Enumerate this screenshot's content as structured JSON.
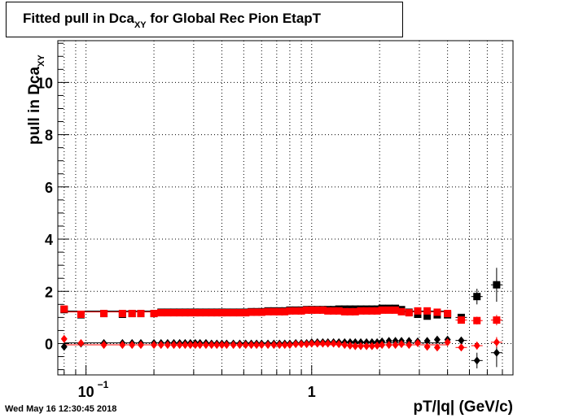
{
  "header": {
    "title": "Fitted pull in Dca",
    "title_sub": "XY",
    "title_rest": " for Global Rec Pion EtapT"
  },
  "footer": {
    "timestamp": "Wed May 16 12:30:45 2018"
  },
  "chart_data": {
    "type": "scatter",
    "title": "Fitted pull in Dca_XY for Global Rec Pion EtapT",
    "xlabel": "pT/|q| (GeV/c)",
    "ylabel": "pull in Dca",
    "ylabel_sub": "XY",
    "x_scale": "log",
    "xlim": [
      0.075,
      7.8
    ],
    "ylim": [
      -1.2,
      11.6
    ],
    "grid": true,
    "x_ticks": [
      {
        "value": 0.1,
        "label": "10",
        "sup": "−1"
      },
      {
        "value": 1,
        "label": "1",
        "sup": ""
      }
    ],
    "y_ticks": [
      {
        "value": 0,
        "label": "0"
      },
      {
        "value": 2,
        "label": "2"
      },
      {
        "value": 4,
        "label": "4"
      },
      {
        "value": 6,
        "label": "6"
      },
      {
        "value": 8,
        "label": "8"
      },
      {
        "value": 10,
        "label": "10"
      }
    ],
    "colors": {
      "black": "#000000",
      "red": "#ff0000",
      "fit_black": "#000000",
      "fit_red": "#ff0000"
    },
    "x": [
      0.08,
      0.095,
      0.12,
      0.145,
      0.16,
      0.175,
      0.2,
      0.215,
      0.23,
      0.245,
      0.26,
      0.275,
      0.29,
      0.305,
      0.32,
      0.34,
      0.36,
      0.38,
      0.4,
      0.42,
      0.45,
      0.48,
      0.51,
      0.54,
      0.57,
      0.6,
      0.64,
      0.68,
      0.72,
      0.76,
      0.8,
      0.85,
      0.9,
      0.95,
      1.0,
      1.06,
      1.12,
      1.18,
      1.25,
      1.32,
      1.4,
      1.48,
      1.56,
      1.65,
      1.75,
      1.85,
      1.95,
      2.05,
      2.2,
      2.35,
      2.5,
      2.7,
      2.95,
      3.25,
      3.6,
      4.0,
      4.6,
      5.4,
      6.6
    ],
    "series": [
      {
        "marker": "square",
        "color": "black",
        "values": [
          1.3,
          1.1,
          1.15,
          1.12,
          1.15,
          1.15,
          1.15,
          1.2,
          1.2,
          1.2,
          1.2,
          1.2,
          1.2,
          1.2,
          1.2,
          1.2,
          1.2,
          1.2,
          1.2,
          1.2,
          1.2,
          1.2,
          1.2,
          1.22,
          1.22,
          1.22,
          1.25,
          1.25,
          1.25,
          1.25,
          1.28,
          1.28,
          1.28,
          1.3,
          1.3,
          1.3,
          1.3,
          1.3,
          1.3,
          1.32,
          1.32,
          1.32,
          1.32,
          1.32,
          1.32,
          1.32,
          1.32,
          1.35,
          1.35,
          1.35,
          1.3,
          1.2,
          1.12,
          1.05,
          1.1,
          1.1,
          1.0,
          1.8,
          2.25
        ],
        "errors": [
          0.03,
          0.02,
          0.02,
          0.02,
          0.02,
          0.02,
          0.02,
          0.02,
          0.02,
          0.02,
          0.02,
          0.02,
          0.02,
          0.02,
          0.02,
          0.02,
          0.02,
          0.02,
          0.02,
          0.02,
          0.02,
          0.02,
          0.02,
          0.02,
          0.02,
          0.02,
          0.02,
          0.02,
          0.02,
          0.02,
          0.02,
          0.02,
          0.02,
          0.02,
          0.02,
          0.02,
          0.02,
          0.02,
          0.02,
          0.02,
          0.02,
          0.02,
          0.02,
          0.02,
          0.02,
          0.02,
          0.02,
          0.03,
          0.03,
          0.03,
          0.03,
          0.04,
          0.05,
          0.06,
          0.08,
          0.1,
          0.12,
          0.3,
          0.65
        ]
      },
      {
        "marker": "diamond",
        "color": "black",
        "values": [
          -0.12,
          0.0,
          0.02,
          0.02,
          0.02,
          0.02,
          0.02,
          0.02,
          0.02,
          0.02,
          0.02,
          0.02,
          0.02,
          0.02,
          0.02,
          0.02,
          0.0,
          0.0,
          0.0,
          0.0,
          0.0,
          0.0,
          0.0,
          0.0,
          0.0,
          0.0,
          0.0,
          0.0,
          0.0,
          0.0,
          0.0,
          0.02,
          0.02,
          0.02,
          0.05,
          0.05,
          0.05,
          0.05,
          0.05,
          0.05,
          0.05,
          0.05,
          0.05,
          0.05,
          0.05,
          0.05,
          0.05,
          0.08,
          0.1,
          0.1,
          0.1,
          0.1,
          0.08,
          0.1,
          0.15,
          0.15,
          0.12,
          -0.65,
          -0.35
        ],
        "errors": [
          0.03,
          0.02,
          0.02,
          0.02,
          0.02,
          0.02,
          0.02,
          0.02,
          0.02,
          0.02,
          0.02,
          0.02,
          0.02,
          0.02,
          0.02,
          0.02,
          0.02,
          0.02,
          0.02,
          0.02,
          0.02,
          0.02,
          0.02,
          0.02,
          0.02,
          0.02,
          0.02,
          0.02,
          0.02,
          0.02,
          0.02,
          0.02,
          0.02,
          0.02,
          0.02,
          0.02,
          0.02,
          0.02,
          0.02,
          0.02,
          0.02,
          0.02,
          0.02,
          0.02,
          0.02,
          0.02,
          0.02,
          0.03,
          0.03,
          0.03,
          0.03,
          0.04,
          0.05,
          0.06,
          0.08,
          0.1,
          0.12,
          0.3,
          0.55
        ]
      },
      {
        "marker": "square",
        "color": "red",
        "values": [
          1.32,
          1.12,
          1.15,
          1.15,
          1.15,
          1.15,
          1.15,
          1.18,
          1.18,
          1.18,
          1.18,
          1.18,
          1.18,
          1.18,
          1.18,
          1.18,
          1.18,
          1.18,
          1.18,
          1.18,
          1.18,
          1.18,
          1.18,
          1.2,
          1.2,
          1.2,
          1.22,
          1.22,
          1.22,
          1.22,
          1.25,
          1.25,
          1.25,
          1.28,
          1.28,
          1.28,
          1.28,
          1.25,
          1.25,
          1.25,
          1.22,
          1.22,
          1.22,
          1.25,
          1.25,
          1.25,
          1.25,
          1.28,
          1.28,
          1.28,
          1.22,
          1.18,
          1.25,
          1.25,
          1.2,
          1.15,
          0.9,
          0.88,
          0.9
        ],
        "errors": [
          0.03,
          0.02,
          0.02,
          0.02,
          0.02,
          0.02,
          0.02,
          0.02,
          0.02,
          0.02,
          0.02,
          0.02,
          0.02,
          0.02,
          0.02,
          0.02,
          0.02,
          0.02,
          0.02,
          0.02,
          0.02,
          0.02,
          0.02,
          0.02,
          0.02,
          0.02,
          0.02,
          0.02,
          0.02,
          0.02,
          0.02,
          0.02,
          0.02,
          0.02,
          0.02,
          0.02,
          0.02,
          0.02,
          0.02,
          0.02,
          0.02,
          0.02,
          0.02,
          0.02,
          0.02,
          0.02,
          0.02,
          0.03,
          0.03,
          0.03,
          0.03,
          0.04,
          0.05,
          0.06,
          0.08,
          0.1,
          0.12,
          0.15,
          0.2
        ]
      },
      {
        "marker": "diamond",
        "color": "red",
        "values": [
          0.18,
          0.02,
          -0.05,
          -0.05,
          -0.05,
          -0.05,
          -0.05,
          -0.05,
          -0.05,
          -0.05,
          -0.05,
          -0.05,
          -0.05,
          -0.05,
          -0.05,
          -0.05,
          -0.05,
          -0.05,
          -0.05,
          -0.05,
          -0.05,
          -0.05,
          -0.05,
          -0.05,
          -0.05,
          -0.05,
          -0.05,
          -0.05,
          -0.05,
          -0.05,
          -0.05,
          -0.02,
          -0.02,
          -0.02,
          0.0,
          0.0,
          0.0,
          0.0,
          0.0,
          -0.02,
          -0.05,
          -0.08,
          -0.1,
          -0.1,
          -0.1,
          -0.1,
          -0.08,
          -0.05,
          -0.05,
          -0.05,
          -0.02,
          -0.05,
          0.02,
          -0.12,
          -0.15,
          0.05,
          -0.15,
          -0.08,
          0.05
        ],
        "errors": [
          0.03,
          0.02,
          0.02,
          0.02,
          0.02,
          0.02,
          0.02,
          0.02,
          0.02,
          0.02,
          0.02,
          0.02,
          0.02,
          0.02,
          0.02,
          0.02,
          0.02,
          0.02,
          0.02,
          0.02,
          0.02,
          0.02,
          0.02,
          0.02,
          0.02,
          0.02,
          0.02,
          0.02,
          0.02,
          0.02,
          0.02,
          0.02,
          0.02,
          0.02,
          0.02,
          0.02,
          0.02,
          0.02,
          0.02,
          0.02,
          0.02,
          0.02,
          0.02,
          0.02,
          0.02,
          0.02,
          0.02,
          0.03,
          0.03,
          0.03,
          0.03,
          0.04,
          0.05,
          0.06,
          0.08,
          0.1,
          0.12,
          0.15,
          0.2
        ]
      }
    ]
  }
}
